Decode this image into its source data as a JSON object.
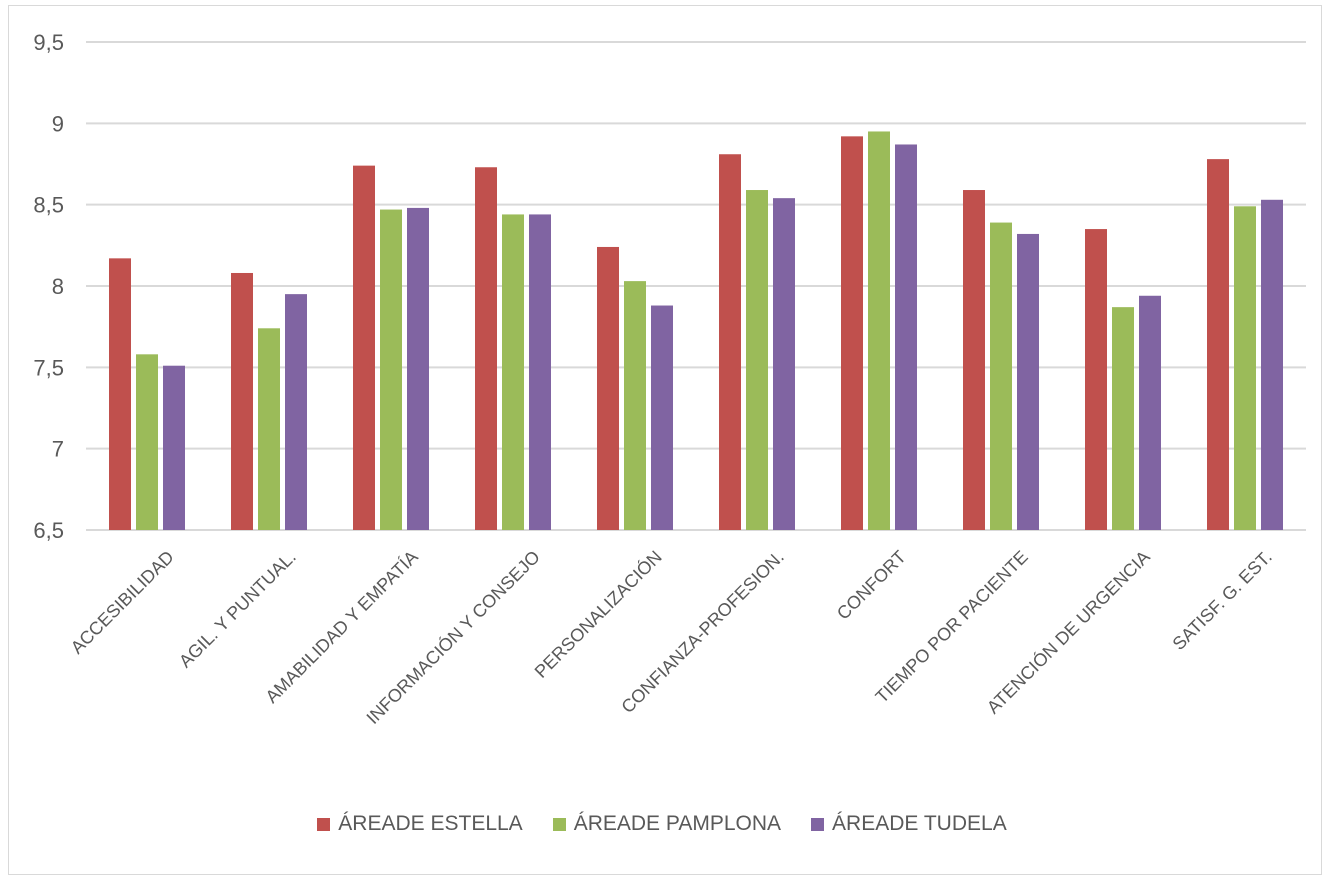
{
  "chart_data": {
    "type": "bar",
    "title": "",
    "xlabel": "",
    "ylabel": "",
    "ylim": [
      6.5,
      9.5
    ],
    "yticks": [
      "6,5",
      "7",
      "7,5",
      "8",
      "8,5",
      "9",
      "9,5"
    ],
    "ytick_values": [
      6.5,
      7,
      7.5,
      8,
      8.5,
      9,
      9.5
    ],
    "grid": true,
    "legend_position": "bottom",
    "categories": [
      "ACCESIBILIDAD",
      "AGIL. Y PUNTUAL.",
      "AMABILIDAD Y EMPATÍA",
      "INFORMACIÓN Y CONSEJO",
      "PERSONALIZACIÓN",
      "CONFIANZA-PROFESION.",
      "CONFORT",
      "TIEMPO POR PACIENTE",
      "ATENCIÓN DE URGENCIA",
      "SATISF. G. EST."
    ],
    "series": [
      {
        "name": "ÁREADE ESTELLA",
        "color": "#c0504d",
        "values": [
          8.17,
          8.08,
          8.74,
          8.73,
          8.24,
          8.81,
          8.92,
          8.59,
          8.35,
          8.78
        ]
      },
      {
        "name": "ÁREADE PAMPLONA",
        "color": "#9bbb59",
        "values": [
          7.58,
          7.74,
          8.47,
          8.44,
          8.03,
          8.59,
          8.95,
          8.39,
          7.87,
          8.49
        ]
      },
      {
        "name": "ÁREADE TUDELA",
        "color": "#8064a2",
        "values": [
          7.51,
          7.95,
          8.48,
          8.44,
          7.88,
          8.54,
          8.87,
          8.32,
          7.94,
          8.53
        ]
      }
    ]
  }
}
